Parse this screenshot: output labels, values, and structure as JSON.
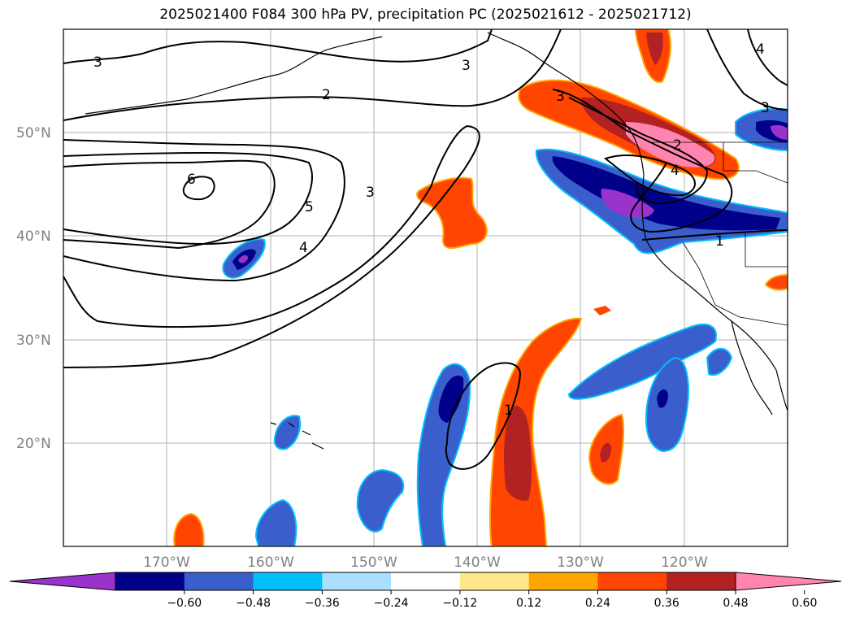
{
  "title": "2025021400 F084 300 hPa PV, precipitation PC (2025021612 - 2025021712)",
  "lat_labels": [
    "50°N",
    "40°N",
    "30°N",
    "20°N"
  ],
  "lon_labels": [
    "170°W",
    "160°W",
    "150°W",
    "140°W",
    "130°W",
    "120°W"
  ],
  "colorbar": {
    "tick_labels": [
      "−0.60",
      "−0.48",
      "−0.36",
      "−0.24",
      "−0.12",
      "0.12",
      "0.24",
      "0.36",
      "0.48",
      "0.60"
    ],
    "bin_colors": [
      "#9933cc",
      "#00008b",
      "#3a5fcd",
      "#00bfff",
      "#aadfff",
      "#ffffff",
      "#ffe88a",
      "#ffa500",
      "#ff4500",
      "#b22222",
      "#ff85b0"
    ]
  },
  "contour_labels": [
    "3",
    "3",
    "3",
    "3",
    "2",
    "2",
    "6",
    "5",
    "3",
    "4",
    "4",
    "1",
    "1",
    "4"
  ]
}
